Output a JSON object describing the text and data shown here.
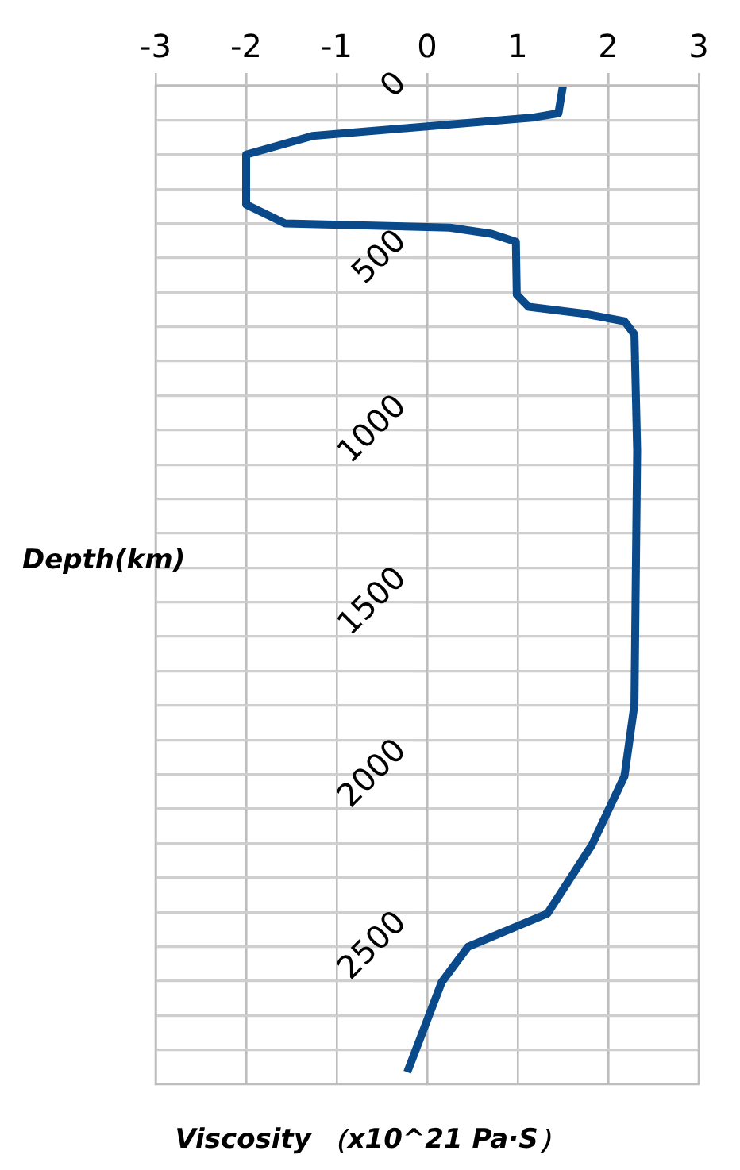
{
  "chart_data": {
    "type": "line",
    "xlabel": "Viscosity （x10^21 Pa·S）",
    "ylabel": "Depth(km)",
    "x": [
      1.5,
      1.45,
      1.18,
      -1.27,
      -2.0,
      -2.0,
      -1.57,
      0.25,
      0.71,
      0.98,
      0.99,
      1.12,
      1.71,
      2.18,
      2.29,
      2.32,
      2.29,
      2.18,
      1.82,
      1.33,
      0.45,
      0.16,
      -0.22
    ],
    "series": [
      {
        "color": "#0b4a8a",
        "values": [
          0,
          80,
          92,
          146,
          200,
          345,
          400,
          412,
          430,
          453,
          607,
          642,
          661,
          684,
          722,
          1060,
          1797,
          2005,
          2205,
          2404,
          2501,
          2604,
          2865
        ]
      }
    ],
    "xlim": [
      -3,
      3
    ],
    "xticks": [
      -3,
      -2,
      -1,
      0,
      1,
      2,
      3
    ],
    "ylim": [
      2900,
      0
    ],
    "yticks": [
      0,
      {
        "value": 100,
        "label": null
      },
      {
        "value": 200,
        "label": null
      },
      {
        "value": 300,
        "label": null
      },
      {
        "value": 400,
        "label": null
      },
      500,
      {
        "value": 600,
        "label": null
      },
      {
        "value": 700,
        "label": null
      },
      {
        "value": 800,
        "label": null
      },
      {
        "value": 900,
        "label": null
      },
      1000,
      {
        "value": 1100,
        "label": null
      },
      {
        "value": 1200,
        "label": null
      },
      {
        "value": 1300,
        "label": null
      },
      {
        "value": 1400,
        "label": null
      },
      1500,
      {
        "value": 1600,
        "label": null
      },
      {
        "value": 1700,
        "label": null
      },
      {
        "value": 1800,
        "label": null
      },
      {
        "value": 1900,
        "label": null
      },
      2000,
      {
        "value": 2100,
        "label": null
      },
      {
        "value": 2200,
        "label": null
      },
      {
        "value": 2300,
        "label": null
      },
      {
        "value": 2400,
        "label": null
      },
      2500,
      {
        "value": 2600,
        "label": null
      },
      {
        "value": 2700,
        "label": null
      },
      {
        "value": 2800,
        "label": null
      }
    ],
    "grid": true,
    "legend": false,
    "marker": "none",
    "line_style": "solid"
  }
}
